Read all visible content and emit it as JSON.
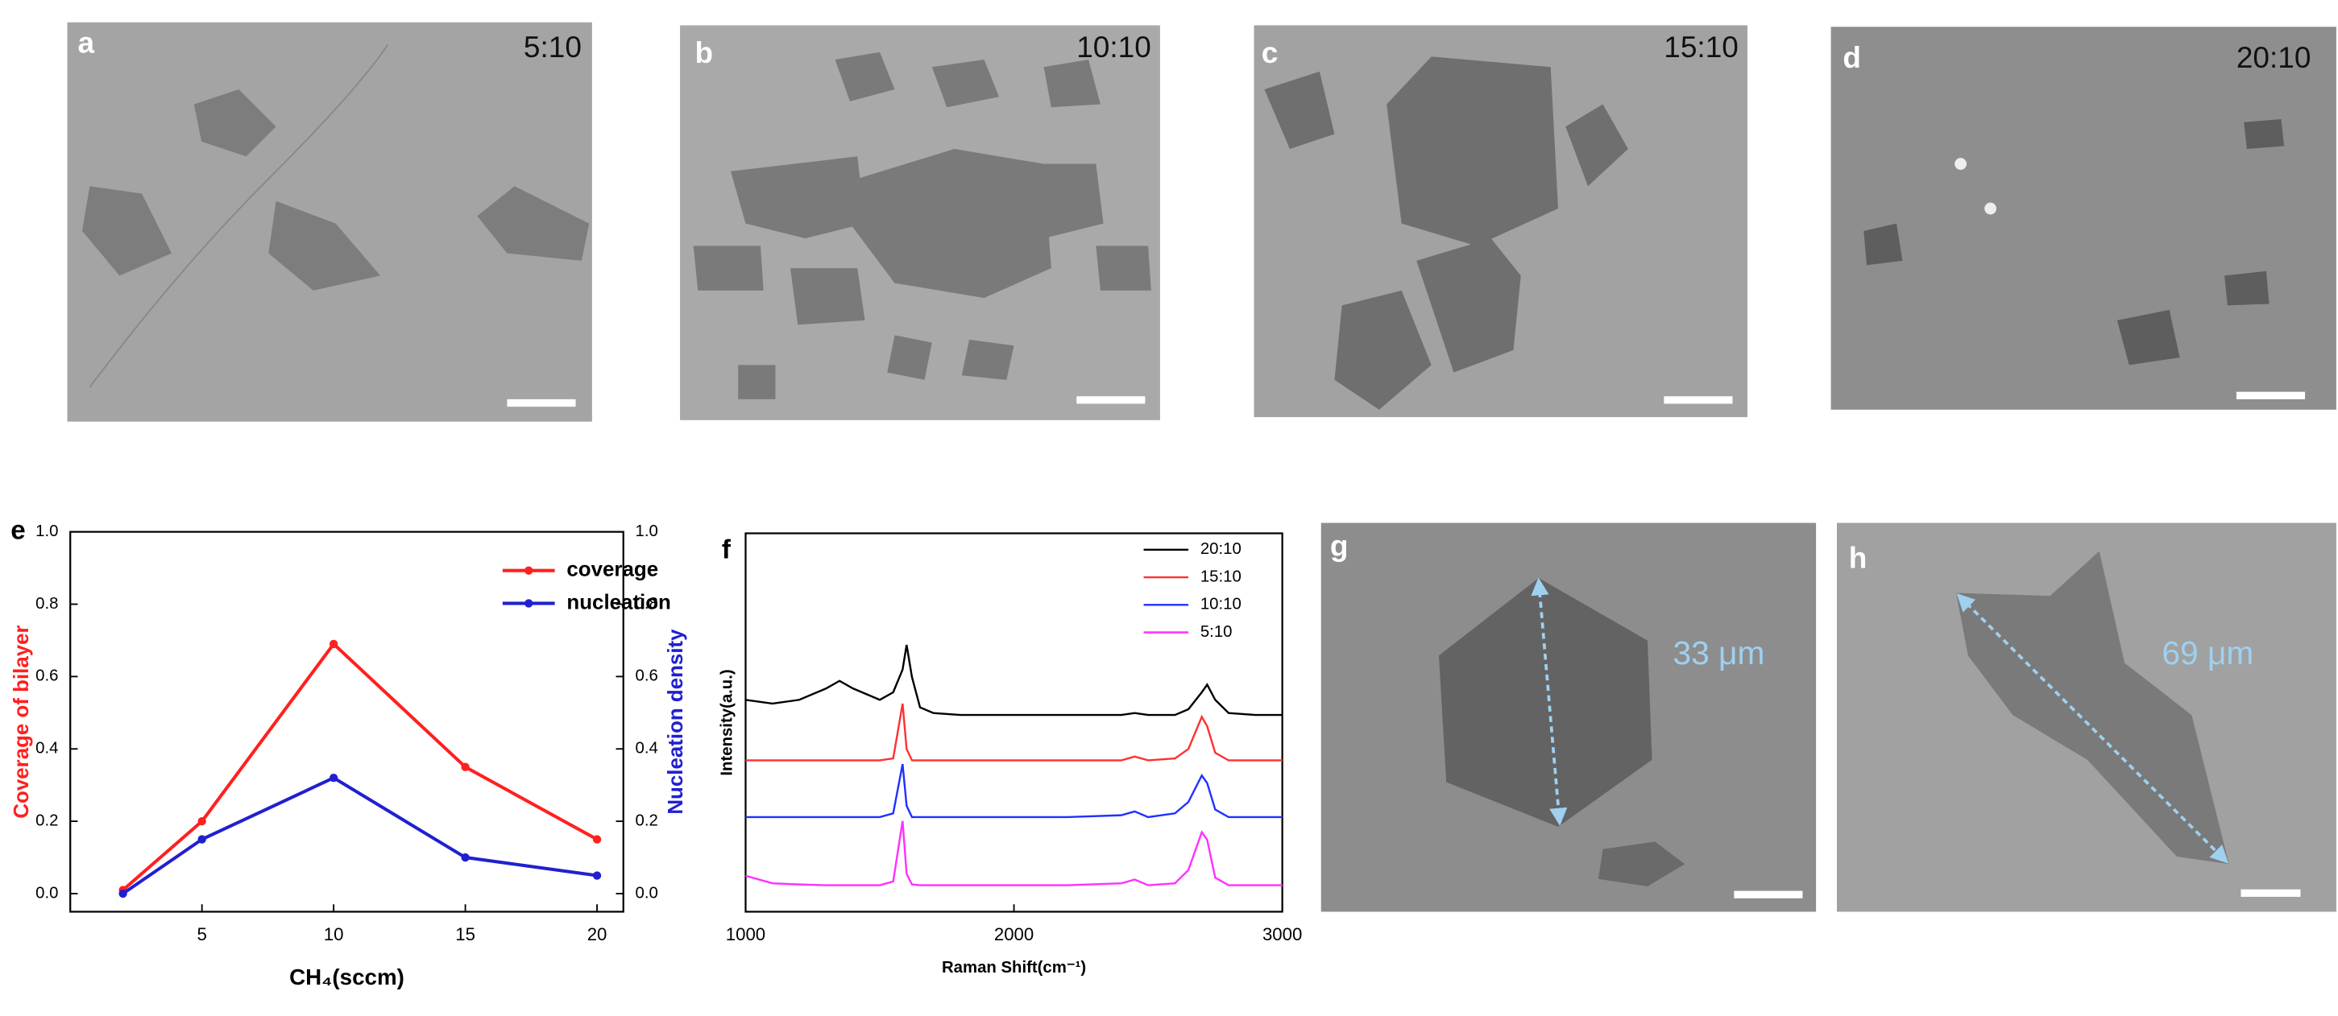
{
  "panels": [
    {
      "label": "a",
      "condition": "5:10"
    },
    {
      "label": "b",
      "condition": "10:10"
    },
    {
      "label": "c",
      "condition": "15:10"
    },
    {
      "label": "d",
      "condition": "20:10"
    }
  ],
  "images": [
    {
      "label": "g",
      "measurement": "33 μm"
    },
    {
      "label": "h",
      "measurement": "69 μm"
    }
  ],
  "chart_data": [
    {
      "type": "line",
      "panel_label": "e",
      "markers": true,
      "xlabel": "CH₄(sccm)",
      "ylabel": "Coverage of bilayer",
      "y2label": "Nucleation density",
      "ylabel_color": "#ff2020",
      "y2label_color": "#2020d0",
      "x": [
        2,
        5,
        10,
        15,
        20
      ],
      "series": [
        {
          "name": "coverage",
          "color": "#ff2020",
          "values": [
            0.01,
            0.2,
            0.69,
            0.35,
            0.15
          ]
        },
        {
          "name": "nucleation",
          "color": "#2020d0",
          "axis": "y2",
          "values": [
            0,
            0.15,
            0.32,
            0.1,
            0.05
          ]
        }
      ],
      "xlim": [
        0,
        21
      ],
      "xticks": [
        5,
        10,
        15,
        20
      ],
      "ylim": [
        -0.05,
        1.0
      ],
      "yticks": [
        {
          "value": 0,
          "label": "0.0"
        },
        0.2,
        0.4,
        0.6,
        0.8,
        {
          "value": 1,
          "label": "1.0"
        }
      ],
      "y2lim": [
        -0.05,
        1.0
      ],
      "y2ticks": [
        {
          "value": 0,
          "label": "0.0"
        },
        0.2,
        0.4,
        0.6,
        0.8,
        {
          "value": 1,
          "label": "1.0"
        }
      ],
      "legend": "upper right"
    },
    {
      "type": "line",
      "panel_label": "f",
      "markers": false,
      "xlabel": "Raman Shift(cm⁻¹)",
      "ylabel": "Intensity(a.u.)",
      "x": [
        1000,
        1100,
        1200,
        1300,
        1350,
        1400,
        1500,
        1550,
        1585,
        1600,
        1620,
        1650,
        1700,
        1800,
        2000,
        2200,
        2400,
        2450,
        2500,
        2600,
        2650,
        2700,
        2720,
        2750,
        2800,
        2900,
        3000
      ],
      "series": [
        {
          "name": "20:10",
          "color": "#000000",
          "values": [
            5.6,
            5.5,
            5.6,
            5.9,
            6.1,
            5.9,
            5.6,
            5.8,
            6.4,
            7.05,
            6.2,
            5.4,
            5.25,
            5.2,
            5.2,
            5.2,
            5.2,
            5.25,
            5.2,
            5.2,
            5.35,
            5.8,
            6.0,
            5.6,
            5.25,
            5.2,
            5.2
          ]
        },
        {
          "name": "15:10",
          "color": "#ff3030",
          "values": [
            4.0,
            4.0,
            4.0,
            4.0,
            4.0,
            4.0,
            4.0,
            4.05,
            5.5,
            4.3,
            4.0,
            4.0,
            4.0,
            4.0,
            4.0,
            4.0,
            4.0,
            4.1,
            4.0,
            4.05,
            4.3,
            5.15,
            4.9,
            4.2,
            4.0,
            4.0,
            4.0
          ]
        },
        {
          "name": "10:10",
          "color": "#2030ff",
          "values": [
            2.5,
            2.5,
            2.5,
            2.5,
            2.5,
            2.5,
            2.5,
            2.6,
            3.9,
            2.8,
            2.5,
            2.5,
            2.5,
            2.5,
            2.5,
            2.5,
            2.55,
            2.65,
            2.5,
            2.6,
            2.9,
            3.6,
            3.4,
            2.7,
            2.5,
            2.5,
            2.5
          ]
        },
        {
          "name": "5:10",
          "color": "#ff30ff",
          "values": [
            0.95,
            0.75,
            0.72,
            0.7,
            0.7,
            0.7,
            0.7,
            0.8,
            2.4,
            1.0,
            0.72,
            0.7,
            0.7,
            0.7,
            0.7,
            0.7,
            0.75,
            0.85,
            0.7,
            0.75,
            1.1,
            2.1,
            1.9,
            0.9,
            0.7,
            0.7,
            0.7
          ]
        }
      ],
      "xlim": [
        1000,
        3000
      ],
      "xticks": [
        1000,
        2000,
        3000
      ],
      "ylim": [
        0,
        10
      ],
      "legend": "upper right"
    }
  ]
}
